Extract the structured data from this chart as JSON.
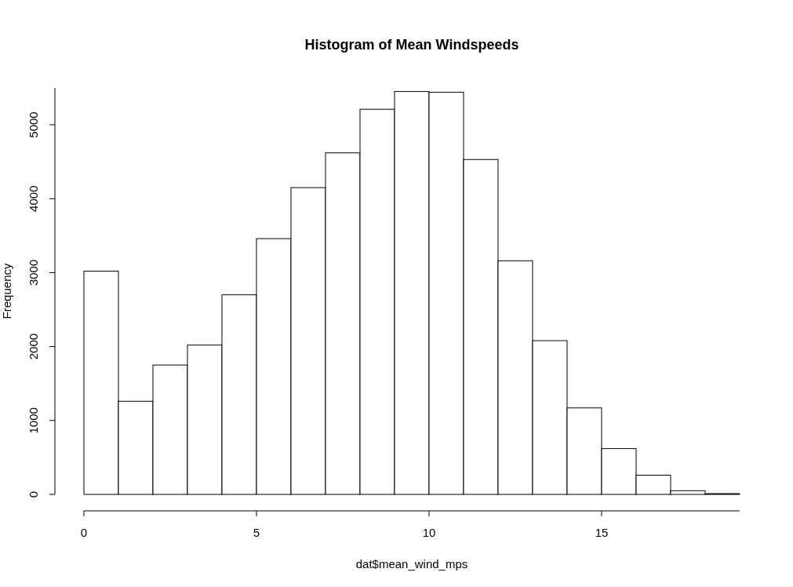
{
  "chart_data": {
    "type": "histogram",
    "title": "Histogram of Mean Windspeeds",
    "xlabel": "dat$mean_wind_mps",
    "ylabel": "Frequency",
    "bins": [
      0,
      1,
      2,
      3,
      4,
      5,
      6,
      7,
      8,
      9,
      10,
      11,
      12,
      13,
      14,
      15,
      16,
      17,
      18,
      19
    ],
    "values": [
      3020,
      1260,
      1750,
      2020,
      2700,
      3460,
      4150,
      4620,
      5210,
      5450,
      5440,
      4530,
      3160,
      2080,
      1170,
      620,
      260,
      50,
      10
    ],
    "color": "#ffffff",
    "xlim": [
      0,
      19
    ],
    "xticks": [
      0,
      5,
      10,
      15
    ],
    "ylim": [
      0,
      5500
    ],
    "yticks": [
      0,
      1000,
      2000,
      3000,
      4000,
      5000
    ],
    "grid": false
  }
}
